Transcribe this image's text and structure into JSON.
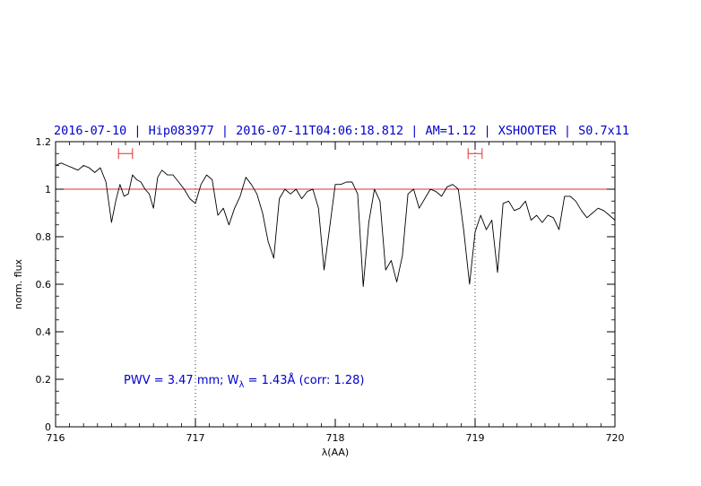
{
  "chart_data": {
    "type": "line",
    "title": "2016-07-10 | Hip083977 | 2016-07-11T04:06:18.812 | AM=1.12 | XSHOOTER | S0.7x11",
    "xlabel": "λ(AA)",
    "ylabel": "norm. flux",
    "xlim": [
      716,
      720
    ],
    "ylim": [
      0,
      1.2
    ],
    "xticks": [
      716,
      717,
      718,
      719,
      720
    ],
    "xtick_labels": [
      "716",
      "717",
      "718",
      "719",
      "720"
    ],
    "yticks": [
      0,
      0.2,
      0.4,
      0.6,
      0.8,
      1,
      1.2
    ],
    "ytick_labels": [
      "0",
      "0.2",
      "0.4",
      "0.6",
      "0.8",
      "1",
      "1.2"
    ],
    "reference_line": 1.0,
    "reference_color": "#e03030",
    "vertical_markers": [
      717,
      719
    ],
    "intervals": [
      [
        716.45,
        716.55
      ],
      [
        718.95,
        719.05
      ]
    ],
    "annotation": {
      "prefix": "PWV = 3.47 mm; W",
      "subscript": "λ",
      "suffix": " = 1.43Å (corr: 1.28)"
    },
    "series": [
      {
        "color": "#000000",
        "x": [
          716.0,
          716.04,
          716.08,
          716.12,
          716.16,
          716.2,
          716.24,
          716.28,
          716.32,
          716.36,
          716.4,
          716.43,
          716.46,
          716.49,
          716.52,
          716.55,
          716.58,
          716.61,
          716.64,
          716.67,
          716.7,
          716.73,
          716.76,
          716.8,
          716.84,
          716.88,
          716.92,
          716.96,
          717.0,
          717.04,
          717.08,
          717.12,
          717.16,
          717.2,
          717.24,
          717.28,
          717.32,
          717.36,
          717.4,
          717.44,
          717.48,
          717.52,
          717.56,
          717.6,
          717.64,
          717.68,
          717.72,
          717.76,
          717.8,
          717.84,
          717.88,
          717.92,
          717.96,
          718.0,
          718.04,
          718.08,
          718.12,
          718.16,
          718.2,
          718.24,
          718.28,
          718.32,
          718.36,
          718.4,
          718.44,
          718.48,
          718.52,
          718.56,
          718.6,
          718.64,
          718.68,
          718.72,
          718.76,
          718.8,
          718.84,
          718.88,
          718.92,
          718.96,
          719.0,
          719.04,
          719.08,
          719.12,
          719.16,
          719.2,
          719.24,
          719.28,
          719.32,
          719.36,
          719.4,
          719.44,
          719.48,
          719.52,
          719.56,
          719.6,
          719.64,
          719.68,
          719.72,
          719.76,
          719.8,
          719.84,
          719.88,
          719.92,
          719.96,
          720.0
        ],
        "y": [
          1.1,
          1.11,
          1.1,
          1.09,
          1.08,
          1.1,
          1.09,
          1.07,
          1.09,
          1.03,
          0.86,
          0.95,
          1.02,
          0.97,
          0.98,
          1.06,
          1.04,
          1.03,
          1.0,
          0.98,
          0.92,
          1.05,
          1.08,
          1.06,
          1.06,
          1.03,
          1.0,
          0.96,
          0.94,
          1.02,
          1.06,
          1.04,
          0.89,
          0.92,
          0.85,
          0.92,
          0.97,
          1.05,
          1.02,
          0.98,
          0.9,
          0.78,
          0.71,
          0.96,
          1.0,
          0.98,
          1.0,
          0.96,
          0.99,
          1.0,
          0.92,
          0.66,
          0.84,
          1.02,
          1.02,
          1.03,
          1.03,
          0.98,
          0.59,
          0.86,
          1.0,
          0.95,
          0.66,
          0.7,
          0.61,
          0.72,
          0.98,
          1.0,
          0.92,
          0.96,
          1.0,
          0.99,
          0.97,
          1.01,
          1.02,
          1.0,
          0.82,
          0.6,
          0.82,
          0.89,
          0.83,
          0.87,
          0.65,
          0.94,
          0.95,
          0.91,
          0.92,
          0.95,
          0.87,
          0.89,
          0.86,
          0.89,
          0.88,
          0.83,
          0.97,
          0.97,
          0.95,
          0.91,
          0.88,
          0.9,
          0.92,
          0.91,
          0.89,
          0.87
        ]
      }
    ]
  }
}
